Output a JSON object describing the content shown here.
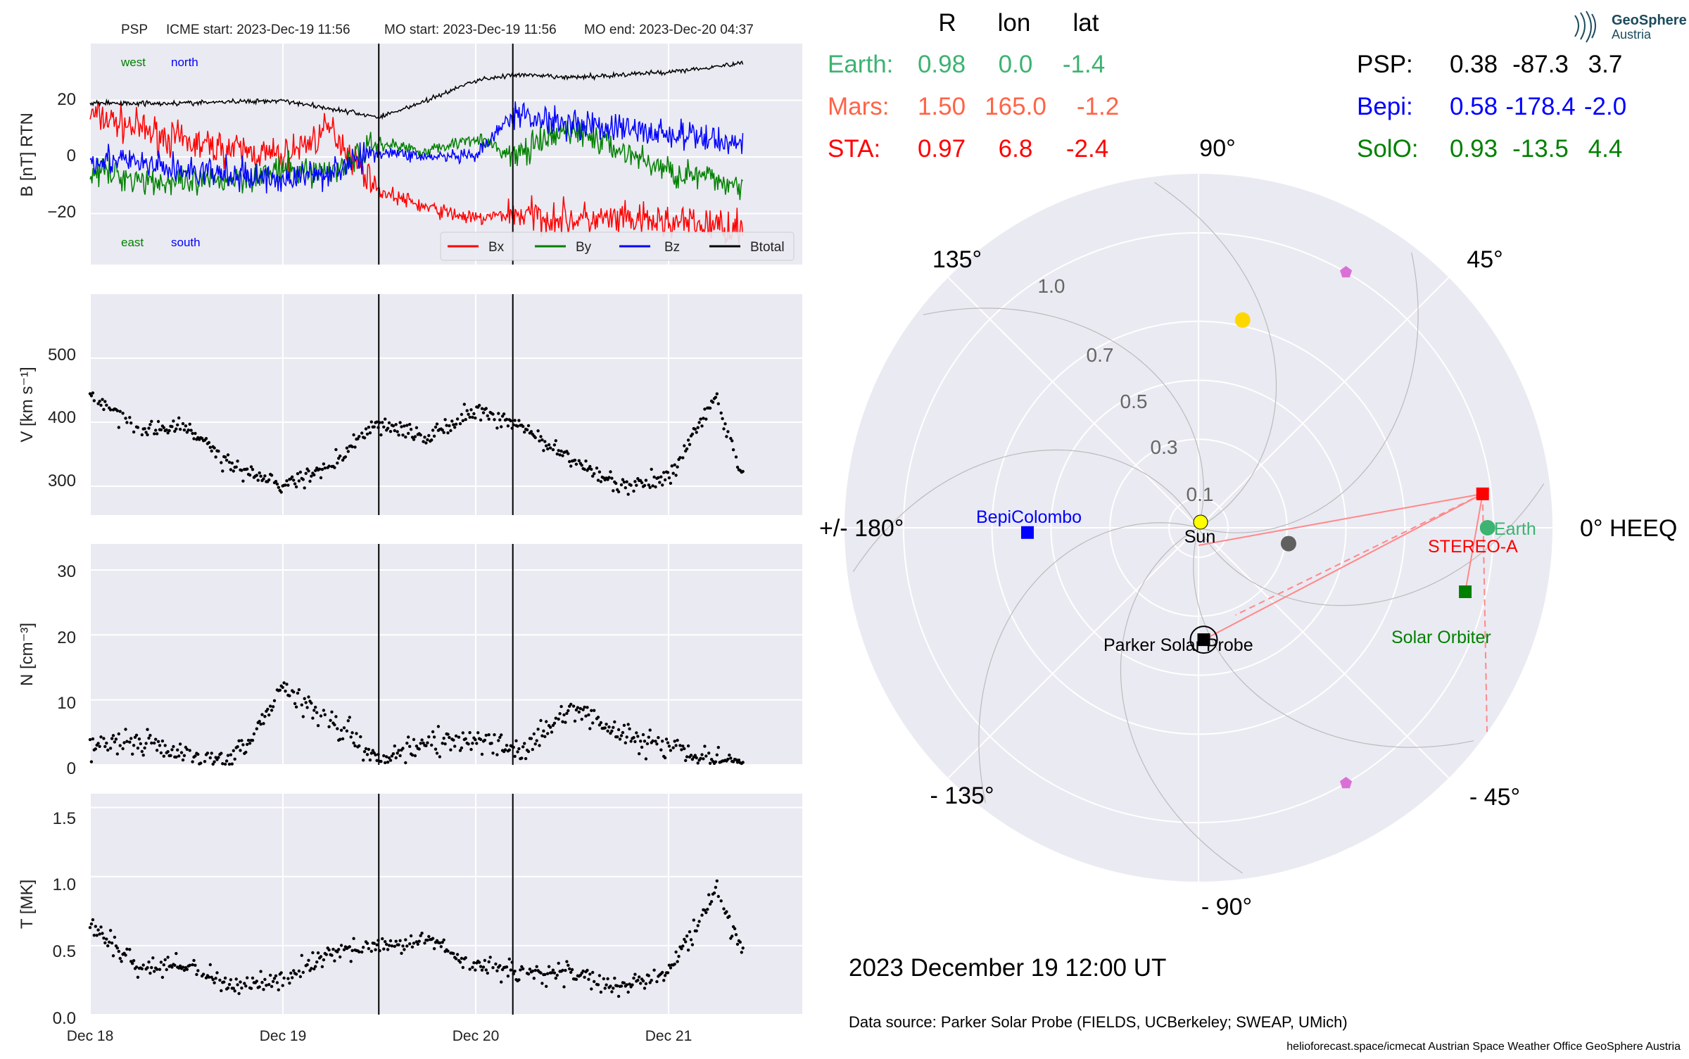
{
  "header": {
    "spacecraft": "PSP",
    "icme_start": "ICME start: 2023-Dec-19 11:56",
    "mo_start": "MO start: 2023-Dec-19 11:56",
    "mo_end": "MO end: 2023-Dec-20 04:37"
  },
  "colors": {
    "panel_bg": "#eaeaf2",
    "grid": "#ffffff",
    "bx": "#ff0000",
    "by": "#008000",
    "bz": "#0000ff",
    "btotal": "#000000",
    "earth": "#3cb371",
    "mars": "#ff6347",
    "sta": "#ff0000",
    "psp": "#000000",
    "bepi": "#0000ff",
    "solo": "#008000"
  },
  "time_axis": {
    "ticks": [
      "Dec 18",
      "Dec 19",
      "Dec 20",
      "Dec 21"
    ],
    "start": "2023-12-18",
    "end": "2023-12-21 16:00",
    "event_lines": [
      "2023-12-19 11:56",
      "2023-12-20 04:37"
    ]
  },
  "mag_panel": {
    "ylabel": "B [nT] RTN",
    "yticks": [
      "20",
      "0",
      "−20"
    ],
    "annotations": {
      "west": "west",
      "north": "north",
      "east": "east",
      "south": "south"
    },
    "legend": [
      "Bx",
      "By",
      "Bz",
      "Btotal"
    ]
  },
  "v_panel": {
    "ylabel": "V [km s⁻¹]",
    "yticks": [
      "500",
      "400",
      "300"
    ]
  },
  "n_panel": {
    "ylabel": "N [cm⁻³]",
    "yticks": [
      "30",
      "20",
      "10",
      "0"
    ]
  },
  "t_panel": {
    "ylabel": "T [MK]",
    "yticks": [
      "1.5",
      "1.0",
      "0.5",
      "0.0"
    ]
  },
  "position_table": {
    "headers": [
      "R",
      "lon",
      "lat"
    ],
    "left_rows": [
      {
        "name": "Earth:",
        "r": "0.98",
        "lon": "0.0",
        "lat": "-1.4"
      },
      {
        "name": "Mars:",
        "r": "1.50",
        "lon": "165.0",
        "lat": "-1.2"
      },
      {
        "name": "STA:",
        "r": "0.97",
        "lon": "6.8",
        "lat": "-2.4"
      }
    ],
    "right_rows": [
      {
        "name": "PSP:",
        "r": "0.38",
        "lon": "-87.3",
        "lat": "3.7"
      },
      {
        "name": "Bepi:",
        "r": "0.58",
        "lon": "-178.4",
        "lat": "-2.0"
      },
      {
        "name": "SolO:",
        "r": "0.93",
        "lon": "-13.5",
        "lat": "4.4"
      }
    ]
  },
  "logo": {
    "line1": "GeoSphere",
    "line2": "Austria"
  },
  "polar": {
    "angle_labels": [
      "90°",
      "45°",
      "0° HEEQ",
      "- 45°",
      "- 90°",
      "- 135°",
      "+/- 180°",
      "135°"
    ],
    "radial_labels": [
      "0.1",
      "0.3",
      "0.5",
      "0.7",
      "1.0"
    ],
    "object_labels": {
      "sun": "Sun",
      "earth": "Earth",
      "sta": "STEREO-A",
      "bepi": "BepiColombo",
      "psp": "Parker Solar Probe",
      "solo": "Solar Orbiter"
    }
  },
  "date_text": "2023 December 19  12:00 UT",
  "data_source": "Data source: Parker Solar Probe (FIELDS, UCBerkeley; SWEAP, UMich)",
  "footer": "helioforecast.space/icmecat   Austrian Space Weather Office   GeoSphere Austria",
  "chart_data": [
    {
      "type": "line",
      "title": "PSP",
      "ylabel": "B [nT] RTN",
      "ylim": [
        -38,
        40
      ],
      "x_range": [
        "2023-12-18",
        "2023-12-21 16:00"
      ],
      "legend_position": "bottom-right",
      "series": [
        {
          "name": "Btotal",
          "x": [
            "12-18 00:00",
            "12-18 12:00",
            "12-19 00:00",
            "12-19 06:00",
            "12-19 12:00",
            "12-19 18:00",
            "12-20 00:00",
            "12-20 04:37",
            "12-20 12:00",
            "12-21 00:00",
            "12-21 09:00"
          ],
          "y": [
            19,
            19,
            20,
            17,
            14,
            20,
            27,
            29,
            28,
            30,
            33
          ]
        },
        {
          "name": "Bx",
          "x": [
            "12-18 00:00",
            "12-18 12:00",
            "12-19 00:00",
            "12-19 06:00",
            "12-19 12:00",
            "12-19 18:00",
            "12-20 00:00",
            "12-20 04:37",
            "12-20 12:00",
            "12-21 00:00",
            "12-21 09:00"
          ],
          "y": [
            15,
            5,
            0,
            10,
            -12,
            -18,
            -22,
            -20,
            -22,
            -23,
            -25
          ]
        },
        {
          "name": "By",
          "x": [
            "12-18 00:00",
            "12-18 12:00",
            "12-19 00:00",
            "12-19 06:00",
            "12-19 12:00",
            "12-19 18:00",
            "12-20 00:00",
            "12-20 04:37",
            "12-20 12:00",
            "12-21 00:00",
            "12-21 09:00"
          ],
          "y": [
            -5,
            -10,
            -5,
            -5,
            5,
            2,
            7,
            0,
            10,
            -5,
            -10
          ]
        },
        {
          "name": "Bz",
          "x": [
            "12-18 00:00",
            "12-18 12:00",
            "12-19 00:00",
            "12-19 06:00",
            "12-19 12:00",
            "12-19 18:00",
            "12-20 00:00",
            "12-20 04:37",
            "12-20 12:00",
            "12-21 00:00",
            "12-21 09:00"
          ],
          "y": [
            0,
            -5,
            -8,
            -5,
            2,
            0,
            0,
            15,
            12,
            8,
            5
          ]
        }
      ]
    },
    {
      "type": "scatter",
      "ylabel": "V [km s⁻¹]",
      "ylim": [
        255,
        600
      ],
      "series": [
        {
          "name": "V",
          "x": [
            "12-18 00:00",
            "12-18 06:00",
            "12-18 12:00",
            "12-18 18:00",
            "12-19 00:00",
            "12-19 06:00",
            "12-19 12:00",
            "12-19 18:00",
            "12-20 00:00",
            "12-20 06:00",
            "12-20 12:00",
            "12-20 18:00",
            "12-21 00:00",
            "12-21 06:00",
            "12-21 09:00"
          ],
          "y": [
            445,
            390,
            390,
            330,
            300,
            330,
            400,
            375,
            420,
            390,
            340,
            300,
            315,
            440,
            320
          ]
        }
      ]
    },
    {
      "type": "scatter",
      "ylabel": "N [cm⁻³]",
      "ylim": [
        0,
        34
      ],
      "series": [
        {
          "name": "N",
          "x": [
            "12-18 00:00",
            "12-18 06:00",
            "12-18 12:00",
            "12-18 18:00",
            "12-19 00:00",
            "12-19 06:00",
            "12-19 12:00",
            "12-19 18:00",
            "12-20 00:00",
            "12-20 06:00",
            "12-20 12:00",
            "12-20 18:00",
            "12-21 00:00",
            "12-21 06:00",
            "12-21 09:00"
          ],
          "y": [
            3,
            4,
            1,
            1,
            12,
            7,
            1,
            3,
            4,
            2,
            9,
            5,
            3,
            0.5,
            0.5
          ]
        }
      ]
    },
    {
      "type": "scatter",
      "ylabel": "T [MK]",
      "ylim": [
        0,
        1.6
      ],
      "series": [
        {
          "name": "T",
          "x": [
            "12-18 00:00",
            "12-18 06:00",
            "12-18 12:00",
            "12-18 18:00",
            "12-19 00:00",
            "12-19 06:00",
            "12-19 12:00",
            "12-19 18:00",
            "12-20 00:00",
            "12-20 06:00",
            "12-20 12:00",
            "12-20 18:00",
            "12-21 00:00",
            "12-21 06:00",
            "12-21 09:00"
          ],
          "y": [
            0.65,
            0.35,
            0.35,
            0.2,
            0.25,
            0.45,
            0.5,
            0.55,
            0.35,
            0.3,
            0.3,
            0.2,
            0.3,
            0.9,
            0.5
          ]
        }
      ]
    },
    {
      "type": "scatter",
      "title": "Spacecraft positions (HEEQ)",
      "polar": true,
      "r_ticks": [
        0.1,
        0.3,
        0.5,
        0.7,
        1.0
      ],
      "points": [
        {
          "name": "Sun",
          "r": 0.0,
          "lon": 0
        },
        {
          "name": "Earth",
          "r": 0.98,
          "lon": 0.0
        },
        {
          "name": "STEREO-A",
          "r": 0.97,
          "lon": 6.8
        },
        {
          "name": "Parker Solar Probe",
          "r": 0.38,
          "lon": -87.3
        },
        {
          "name": "BepiColombo",
          "r": 0.58,
          "lon": -178.4
        },
        {
          "name": "Solar Orbiter",
          "r": 0.93,
          "lon": -13.5
        },
        {
          "name": "Mercury",
          "r": 0.31,
          "lon": -10
        },
        {
          "name": "Venus",
          "r": 0.72,
          "lon": 78
        },
        {
          "name": "L4",
          "r": 1.0,
          "lon": 60
        },
        {
          "name": "L5",
          "r": 1.0,
          "lon": -60
        }
      ]
    }
  ]
}
